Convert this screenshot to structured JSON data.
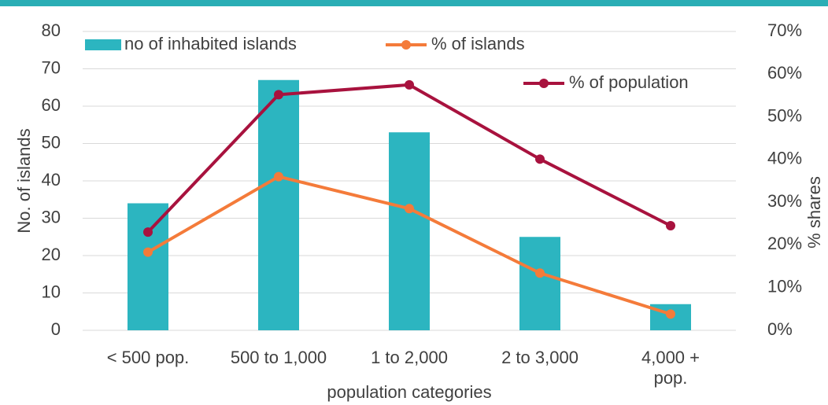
{
  "chart_data": {
    "type": "bar_line",
    "x_label": "population categories",
    "y_label": "No. of islands",
    "y2_label": "% shares",
    "categories": [
      "< 500 pop.",
      "500 to 1,000",
      "1 to 2,000",
      "2 to 3,000",
      "4,000 + pop."
    ],
    "series": [
      {
        "name": "no of inhabited islands",
        "type": "bar",
        "color": "#2cb5c0",
        "values": [
          34,
          67,
          53,
          25,
          7
        ]
      },
      {
        "name": "% of islands",
        "type": "line",
        "axis": "y2",
        "color": "#f47b3a",
        "values": [
          18.3,
          36.0,
          28.5,
          13.4,
          3.8
        ]
      },
      {
        "name": "% of population",
        "type": "line",
        "axis": "y2",
        "color": "#a8123e",
        "values": [
          23.0,
          55.2,
          57.5,
          40.1,
          24.5
        ]
      }
    ],
    "ylim": [
      0,
      80
    ],
    "yticks": [
      0,
      10,
      20,
      30,
      40,
      50,
      60,
      70,
      80
    ],
    "y2lim": [
      0,
      70
    ],
    "y2ticks": [
      {
        "value": 0,
        "label": "0%"
      },
      {
        "value": 10,
        "label": "10%"
      },
      {
        "value": 20,
        "label": "20%"
      },
      {
        "value": 30,
        "label": "30%"
      },
      {
        "value": 40,
        "label": "40%"
      },
      {
        "value": 50,
        "label": "50%"
      },
      {
        "value": 60,
        "label": "60%"
      },
      {
        "value": 70,
        "label": "70%"
      }
    ],
    "grid": true,
    "legend": "top"
  }
}
